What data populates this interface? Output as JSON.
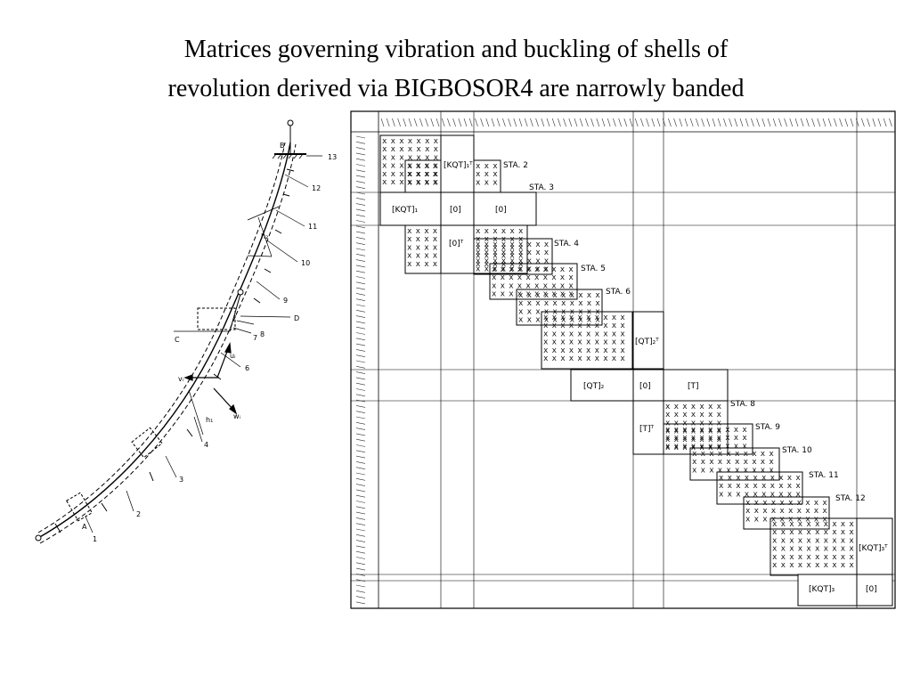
{
  "slide": {
    "title_line1": "Matrices governing vibration and buckling of shells of",
    "title_line2": "revolution derived via BIGBOSOR4 are narrowly banded"
  },
  "shell_figure": {
    "node_labels": [
      "1",
      "2",
      "3",
      "4",
      "5",
      "6",
      "7",
      "8",
      "9",
      "10",
      "11",
      "12",
      "13"
    ],
    "point_labels": [
      "A",
      "B",
      "C",
      "D"
    ],
    "dimension_labels": [
      "h₁",
      "h₂"
    ],
    "displacement_labels": [
      "vᵢ",
      "wᵢ",
      "uᵢ"
    ]
  },
  "matrix": {
    "diagonal_blocks": [
      {
        "label": "STA. 2"
      },
      {
        "label": "STA. 3"
      },
      {
        "label": "STA. 4"
      },
      {
        "label": "STA. 5"
      },
      {
        "label": "STA. 6"
      },
      {
        "label": "STA. 8"
      },
      {
        "label": "STA. 9"
      },
      {
        "label": "STA. 10"
      },
      {
        "label": "STA. 11"
      },
      {
        "label": "STA. 12"
      }
    ],
    "submatrices": {
      "kqt1_T": "[KQT]₁ᵀ",
      "kqt1": "[KQT]₁",
      "zero_a": "[0]",
      "zero_b": "[0]",
      "zero_T": "[0]ᵀ",
      "qt2_T": "[QT]₂ᵀ",
      "qt2": "[QT]₂",
      "zero_c": "[0]",
      "t": "[T]",
      "t_T": "[T]ᵀ",
      "kqt3_T": "[KQT]₃ᵀ",
      "kqt3": "[KQT]₃",
      "zero_d": "[0]"
    },
    "x_mark": "x"
  }
}
